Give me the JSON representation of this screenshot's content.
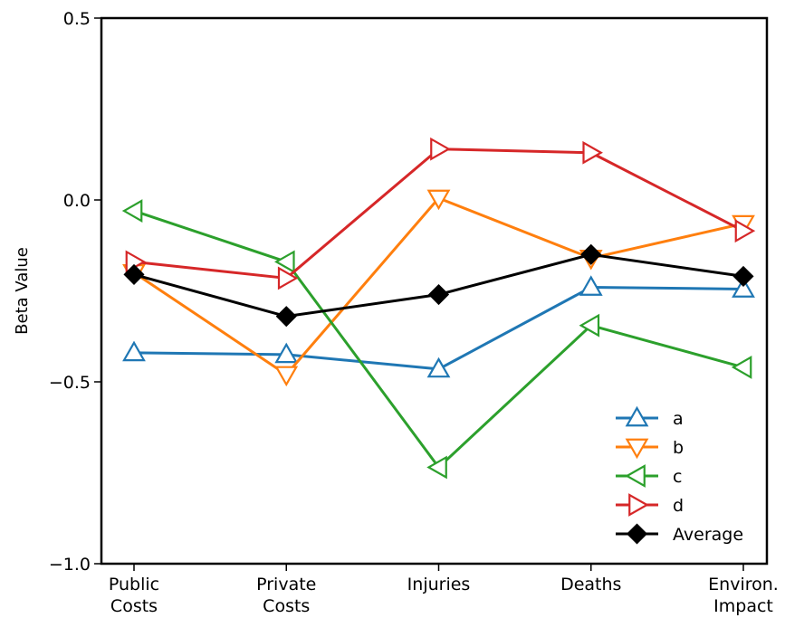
{
  "chart_data": {
    "type": "line",
    "title": "",
    "xlabel": "",
    "ylabel": "Beta Value",
    "ylim": [
      -1.0,
      0.5
    ],
    "yticks": [
      0.5,
      0.0,
      -0.5,
      -1.0
    ],
    "ytick_labels": [
      "0.5",
      "0.0",
      "−0.5",
      "−1.0"
    ],
    "categories": [
      [
        "Public",
        "Costs"
      ],
      [
        "Private",
        "Costs"
      ],
      [
        "Injuries"
      ],
      [
        "Deaths"
      ],
      [
        "Environ.",
        "Impact"
      ]
    ],
    "grid": false,
    "legend_position": "lower-right",
    "series": [
      {
        "name": "a",
        "color": "#1f77b4",
        "marker": "triangle-up-open",
        "values": [
          -0.42,
          -0.425,
          -0.465,
          -0.24,
          -0.245
        ]
      },
      {
        "name": "b",
        "color": "#ff7f0e",
        "marker": "triangle-down-open",
        "values": [
          -0.2,
          -0.48,
          0.005,
          -0.16,
          -0.065
        ]
      },
      {
        "name": "c",
        "color": "#2ca02c",
        "marker": "triangle-left-open",
        "values": [
          -0.03,
          -0.17,
          -0.735,
          -0.345,
          -0.46
        ]
      },
      {
        "name": "d",
        "color": "#d62728",
        "marker": "triangle-right-open",
        "values": [
          -0.17,
          -0.215,
          0.14,
          0.13,
          -0.085
        ]
      },
      {
        "name": "Average",
        "color": "#000000",
        "marker": "diamond-filled",
        "values": [
          -0.205,
          -0.32,
          -0.26,
          -0.15,
          -0.21
        ]
      }
    ]
  }
}
